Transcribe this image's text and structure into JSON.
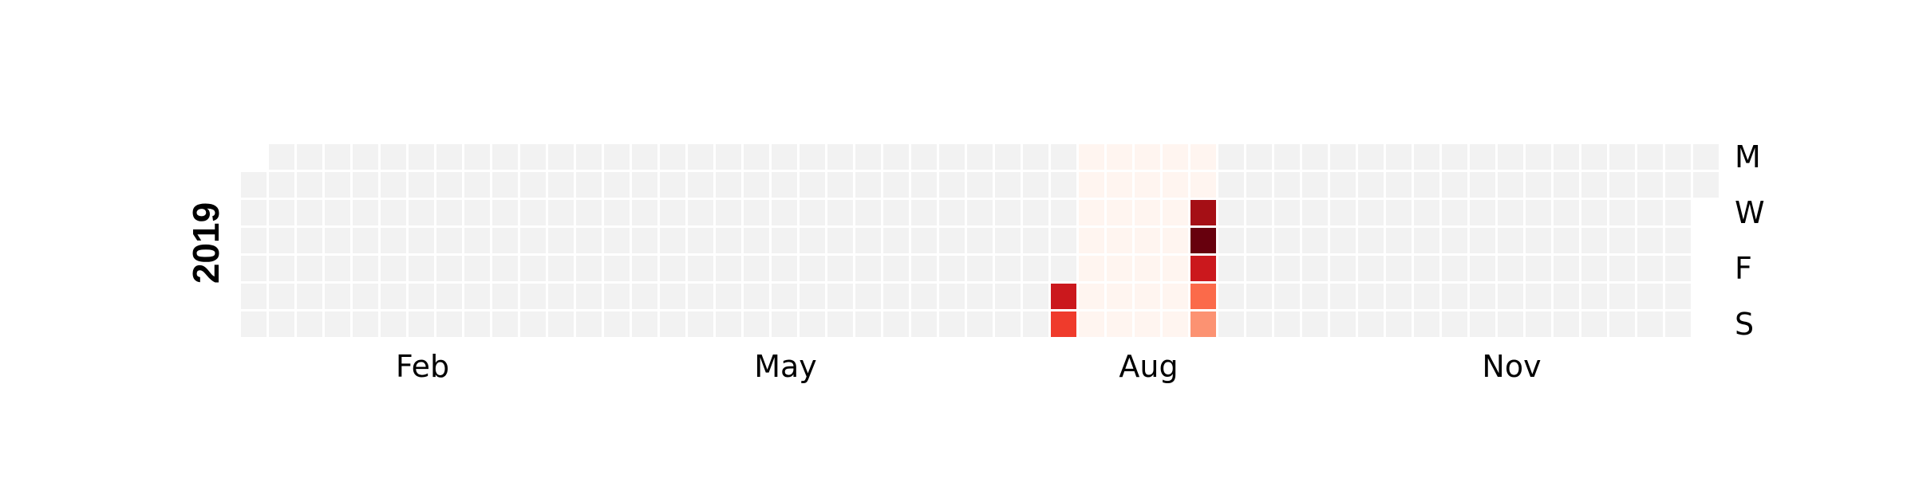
{
  "chart_data": {
    "type": "heatmap",
    "title": "",
    "year": "2019",
    "week_start": "Monday",
    "month_labels": [
      {
        "label": "Feb",
        "month": 2
      },
      {
        "label": "May",
        "month": 5
      },
      {
        "label": "Aug",
        "month": 8
      },
      {
        "label": "Nov",
        "month": 11
      }
    ],
    "weekday_labels": [
      {
        "label": "M",
        "weekday": 0
      },
      {
        "label": "W",
        "weekday": 2
      },
      {
        "label": "F",
        "weekday": 4
      },
      {
        "label": "S",
        "weekday": 6
      }
    ],
    "colors": {
      "empty": "#f2f2f2",
      "scale": [
        "#fff5f0",
        "#fee0d2",
        "#fcbba1",
        "#fc9272",
        "#fb6a4a",
        "#ef3b2c",
        "#cb181d",
        "#a50f15",
        "#67000d"
      ],
      "cell_border": "#ffffff"
    },
    "value_range": [
      0,
      1
    ],
    "low_value_range": {
      "start": "2019-07-29",
      "end": "2019-09-01",
      "value": 0.03
    },
    "values": [
      {
        "date": "2019-07-27",
        "value": 0.72
      },
      {
        "date": "2019-07-28",
        "value": 0.62
      },
      {
        "date": "2019-08-28",
        "value": 0.85
      },
      {
        "date": "2019-08-29",
        "value": 1.0
      },
      {
        "date": "2019-08-30",
        "value": 0.7
      },
      {
        "date": "2019-08-31",
        "value": 0.5
      },
      {
        "date": "2019-09-01",
        "value": 0.38
      }
    ]
  }
}
